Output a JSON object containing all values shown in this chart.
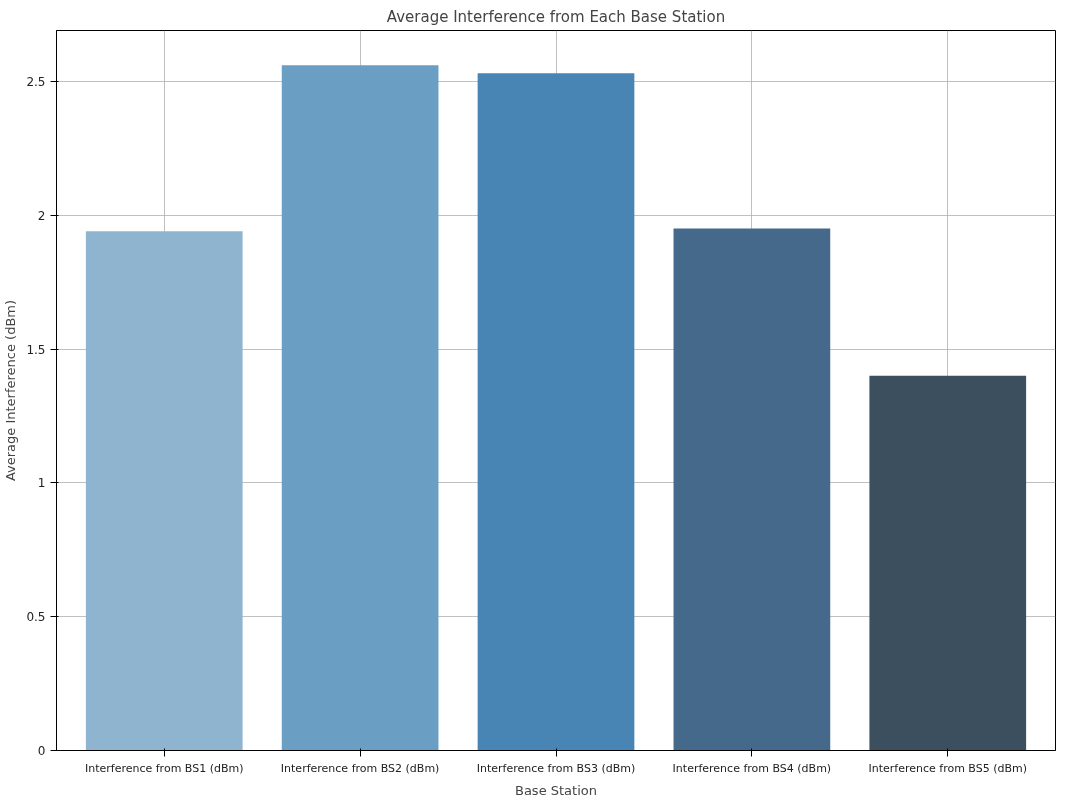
{
  "chart_data": {
    "type": "bar",
    "title": "Average Interference from Each Base Station",
    "xlabel": "Base Station",
    "ylabel": "Average Interference (dBm)",
    "categories": [
      "Interference from BS1 (dBm)",
      "Interference from BS2 (dBm)",
      "Interference from BS3 (dBm)",
      "Interference from BS4 (dBm)",
      "Interference from BS5 (dBm)"
    ],
    "values": [
      1.94,
      2.56,
      2.53,
      1.95,
      1.4
    ],
    "colors": [
      "#8fb4d0",
      "#6a9ec3",
      "#4884b4",
      "#44698a",
      "#3c4f5e"
    ],
    "ylim": [
      0,
      2.69
    ],
    "yticks": [
      0,
      0.5,
      1,
      1.5,
      2,
      2.5
    ],
    "grid": true
  }
}
